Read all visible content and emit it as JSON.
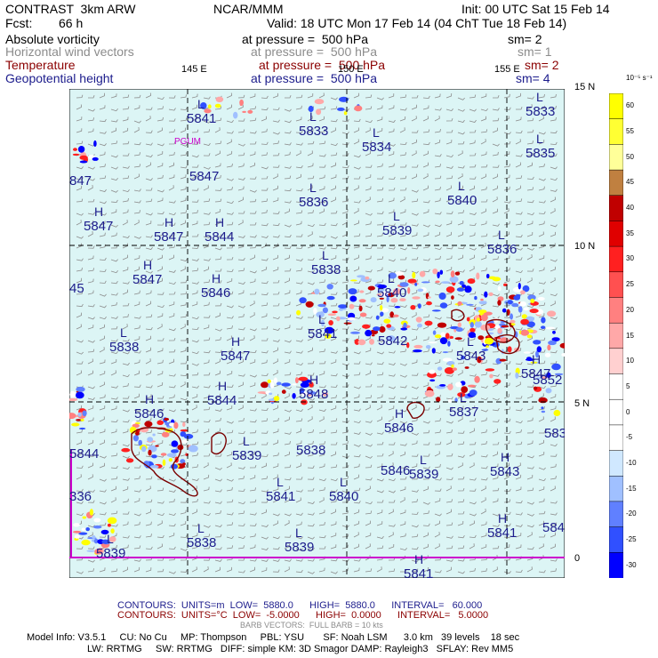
{
  "header": {
    "model": "CONTRAST  3km ARW",
    "org": "NCAR/MMM",
    "init": "Init: 00 UTC Sat 15 Feb 14",
    "fcst_label": "Fcst:",
    "fcst_value": "66 h",
    "valid": "Valid: 18 UTC Mon 17 Feb 14 (04 ChT Tue 18 Feb 14)"
  },
  "fields": [
    {
      "name": "Absolute vorticity",
      "level": "at pressure =  500 hPa",
      "sm": "sm= 2",
      "color": "#000000"
    },
    {
      "name": "Horizontal wind vectors",
      "level": "at pressure =  500 hPa",
      "sm": "sm= 1",
      "color": "#8c8c8c"
    },
    {
      "name": "Temperature",
      "level": "at pressure =  500 hPa",
      "sm": "sm= 2",
      "color": "#8b0000"
    },
    {
      "name": "Geopotential height",
      "level": "at pressure =  500 hPa",
      "sm": "sm= 4",
      "color": "#1c1c8c"
    }
  ],
  "axes": {
    "lon_labels": [
      "145 E",
      "150 E",
      "155 E"
    ],
    "lat_labels": [
      "15 N",
      "10 N",
      "5 N",
      "0"
    ]
  },
  "station": "PGUM",
  "pressure_centers": [
    {
      "t": "L",
      "v": "5841"
    },
    {
      "t": "L",
      "v": "5833"
    },
    {
      "t": "L",
      "v": "5834"
    },
    {
      "t": "L",
      "v": "5833"
    },
    {
      "t": "L",
      "v": "5835"
    },
    {
      "t": "",
      "v": "847"
    },
    {
      "t": "",
      "v": "5847"
    },
    {
      "t": "L",
      "v": "5836"
    },
    {
      "t": "L",
      "v": "5840"
    },
    {
      "t": "H",
      "v": "5847"
    },
    {
      "t": "H",
      "v": "5847"
    },
    {
      "t": "H",
      "v": "5844"
    },
    {
      "t": "L",
      "v": "5839"
    },
    {
      "t": "L",
      "v": "5836"
    },
    {
      "t": "L",
      "v": "5838"
    },
    {
      "t": "H",
      "v": "5847"
    },
    {
      "t": "H",
      "v": "5846"
    },
    {
      "t": "",
      "v": "45"
    },
    {
      "t": "L",
      "v": "5840"
    },
    {
      "t": "L",
      "v": "5841"
    },
    {
      "t": "L",
      "v": "5838"
    },
    {
      "t": "H",
      "v": "5847"
    },
    {
      "t": "",
      "v": "5842"
    },
    {
      "t": "L",
      "v": "5843"
    },
    {
      "t": "H",
      "v": "5847"
    },
    {
      "t": "H",
      "v": "5844"
    },
    {
      "t": "H",
      "v": "5848"
    },
    {
      "t": "",
      "v": "5852"
    },
    {
      "t": "H",
      "v": "5846"
    },
    {
      "t": "L",
      "v": "5837"
    },
    {
      "t": "H",
      "v": "5846"
    },
    {
      "t": "",
      "v": "583"
    },
    {
      "t": "",
      "v": "5844"
    },
    {
      "t": "L",
      "v": "5839"
    },
    {
      "t": "",
      "v": "5838"
    },
    {
      "t": "",
      "v": "5846"
    },
    {
      "t": "L",
      "v": "5839"
    },
    {
      "t": "H",
      "v": "5843"
    },
    {
      "t": "L",
      "v": "5841"
    },
    {
      "t": "L",
      "v": "5840"
    },
    {
      "t": "",
      "v": "336"
    },
    {
      "t": "L",
      "v": "5838"
    },
    {
      "t": "L",
      "v": "5839"
    },
    {
      "t": "H",
      "v": "5841"
    },
    {
      "t": "",
      "v": "584"
    },
    {
      "t": "L",
      "v": "5839"
    },
    {
      "t": "H",
      "v": "5841"
    }
  ],
  "colorbar": {
    "unit": "10⁻⁵ s⁻¹",
    "labels": [
      "60",
      "55",
      "50",
      "45",
      "40",
      "35",
      "30",
      "25",
      "20",
      "15",
      "10",
      "5",
      "0",
      "-5",
      "-10",
      "-15",
      "-20",
      "-25",
      "-30"
    ],
    "colors": [
      "#ffff00",
      "#ffff33",
      "#ffff99",
      "#c08040",
      "#c00000",
      "#e00000",
      "#ff2020",
      "#ff5050",
      "#ff8080",
      "#ffa8a8",
      "#ffd0d0",
      "#ffffff",
      "#ffffff",
      "#ffffff",
      "#d0e8ff",
      "#a0c0ff",
      "#6080ff",
      "#3050ff",
      "#0000ff"
    ]
  },
  "footer": {
    "contours1": "CONTOURS:  UNITS=m  LOW=  5880.0      HIGH=  5880.0      INTERVAL=   60.000",
    "contours2": "CONTOURS:  UNITS=°C  LOW=  -5.0000      HIGH=  0.0000      INTERVAL=   5.0000",
    "barb": "BARB VECTORS:  FULL BARB = 10 kts",
    "model_info1": "Model Info: V3.5.1     CU: No Cu     MP: Thompson     PBL: YSU       SF: Noah LSM      3.0 km   39 levels    18 sec",
    "model_info2": "LW: RRTMG     SW: RRTMG   DIFF: simple KM: 3D Smagor DAMP: Rayleigh3   SFLAY: Rev MM5"
  }
}
